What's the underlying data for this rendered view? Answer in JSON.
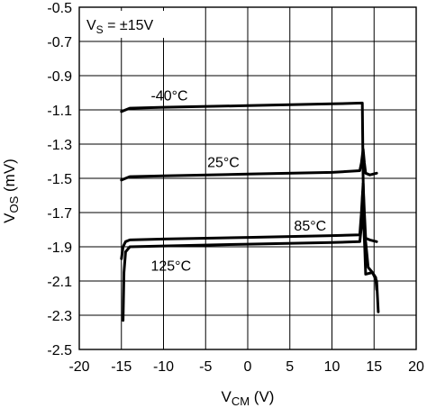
{
  "chart_data": {
    "type": "line",
    "title": "",
    "xlabel": {
      "main": "V",
      "sub": "CM",
      "unit": " (V)"
    },
    "ylabel": {
      "main": "V",
      "sub": "OS",
      "unit": " (mV)"
    },
    "xlim": [
      -20,
      20
    ],
    "ylim": [
      -2.5,
      -0.5
    ],
    "xticks": [
      "-20",
      "-15",
      "-10",
      "-5",
      "0",
      "5",
      "10",
      "15",
      "20"
    ],
    "yticks": [
      "-0.5",
      "-0.7",
      "-0.9",
      "-1.1",
      "-1.3",
      "-1.5",
      "-1.7",
      "-1.9",
      "-2.1",
      "-2.3",
      "-2.5"
    ],
    "grid": true,
    "annotation": {
      "main": "V",
      "sub": "S",
      "rest": " = ±15V"
    },
    "series": [
      {
        "name": "-40°C",
        "points": [
          [
            -15,
            -1.11
          ],
          [
            -14.5,
            -1.1
          ],
          [
            -14,
            -1.09
          ],
          [
            -10,
            -1.085
          ],
          [
            0,
            -1.075
          ],
          [
            10,
            -1.065
          ],
          [
            13.6,
            -1.06
          ],
          [
            13.7,
            -1.5
          ],
          [
            13.8,
            -1.72
          ],
          [
            13.9,
            -1.84
          ],
          [
            14,
            -1.87
          ],
          [
            14.3,
            -2.02
          ],
          [
            14.8,
            -2.05
          ],
          [
            15.2,
            -2.08
          ],
          [
            15.3,
            -2.15
          ]
        ]
      },
      {
        "name": "25°C",
        "points": [
          [
            -15,
            -1.51
          ],
          [
            -14.5,
            -1.5
          ],
          [
            -14,
            -1.49
          ],
          [
            -10,
            -1.485
          ],
          [
            0,
            -1.475
          ],
          [
            10,
            -1.465
          ],
          [
            13.3,
            -1.455
          ],
          [
            13.5,
            -1.41
          ],
          [
            13.7,
            -1.33
          ],
          [
            13.85,
            -1.41
          ],
          [
            14,
            -1.47
          ],
          [
            14.5,
            -1.48
          ],
          [
            15.3,
            -1.47
          ]
        ]
      },
      {
        "name": "85°C",
        "points": [
          [
            -15,
            -1.97
          ],
          [
            -14.8,
            -1.9
          ],
          [
            -14.5,
            -1.87
          ],
          [
            -14,
            -1.86
          ],
          [
            -10,
            -1.855
          ],
          [
            0,
            -1.845
          ],
          [
            10,
            -1.835
          ],
          [
            13.3,
            -1.83
          ],
          [
            13.5,
            -1.7
          ],
          [
            13.7,
            -1.53
          ],
          [
            13.85,
            -1.7
          ],
          [
            14,
            -1.85
          ],
          [
            14.5,
            -1.86
          ],
          [
            15.3,
            -1.87
          ]
        ]
      },
      {
        "name": "125°C",
        "points": [
          [
            -14.8,
            -2.33
          ],
          [
            -14.7,
            -2.05
          ],
          [
            -14.5,
            -1.93
          ],
          [
            -14,
            -1.9
          ],
          [
            -10,
            -1.895
          ],
          [
            0,
            -1.885
          ],
          [
            10,
            -1.875
          ],
          [
            13.3,
            -1.87
          ],
          [
            13.5,
            -1.78
          ],
          [
            13.65,
            -1.58
          ],
          [
            13.8,
            -1.8
          ],
          [
            13.9,
            -1.92
          ],
          [
            14,
            -2.06
          ],
          [
            14.8,
            -2.05
          ],
          [
            15.3,
            -2.1
          ],
          [
            15.5,
            -2.28
          ]
        ]
      }
    ],
    "labels": [
      {
        "text": "-40°C",
        "x": -11.5,
        "y": -1.045
      },
      {
        "text": "25°C",
        "x": -4.8,
        "y": -1.435
      },
      {
        "text": "85°C",
        "x": 5.5,
        "y": -1.805
      },
      {
        "text": "125°C",
        "x": -11.5,
        "y": -2.04
      }
    ]
  }
}
